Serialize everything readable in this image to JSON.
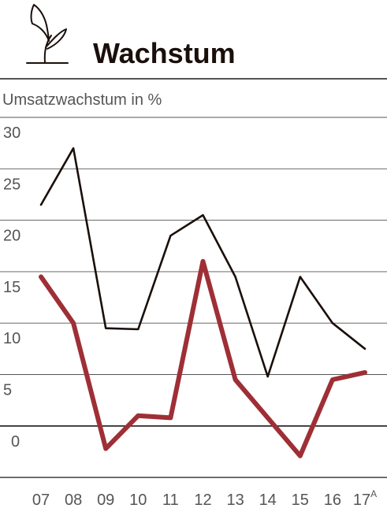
{
  "chart_data": {
    "type": "line",
    "title": "Wachstum",
    "ylabel": "Umsatzwachstum in %",
    "xlabel": "",
    "ylim": [
      -5,
      30
    ],
    "yticks": [
      30,
      25,
      20,
      15,
      10,
      5,
      0
    ],
    "categories": [
      "07",
      "08",
      "09",
      "10",
      "11",
      "12",
      "13",
      "14",
      "15",
      "16",
      "17"
    ],
    "category_superscripts": {
      "17": "A"
    },
    "grid": true,
    "legend": "none",
    "series": [
      {
        "values": [
          21.5,
          27.0,
          9.5,
          9.4,
          18.5,
          20.5,
          14.5,
          4.8,
          14.5,
          10.0,
          7.5
        ],
        "color": "#1a0f0a",
        "style": "thin"
      },
      {
        "values": [
          14.5,
          10.0,
          -2.2,
          1.0,
          0.8,
          16.0,
          4.5,
          0.8,
          -2.9,
          4.5,
          5.2
        ],
        "color": "#9e2f36",
        "style": "thick"
      }
    ],
    "icon": "sprout-icon"
  }
}
